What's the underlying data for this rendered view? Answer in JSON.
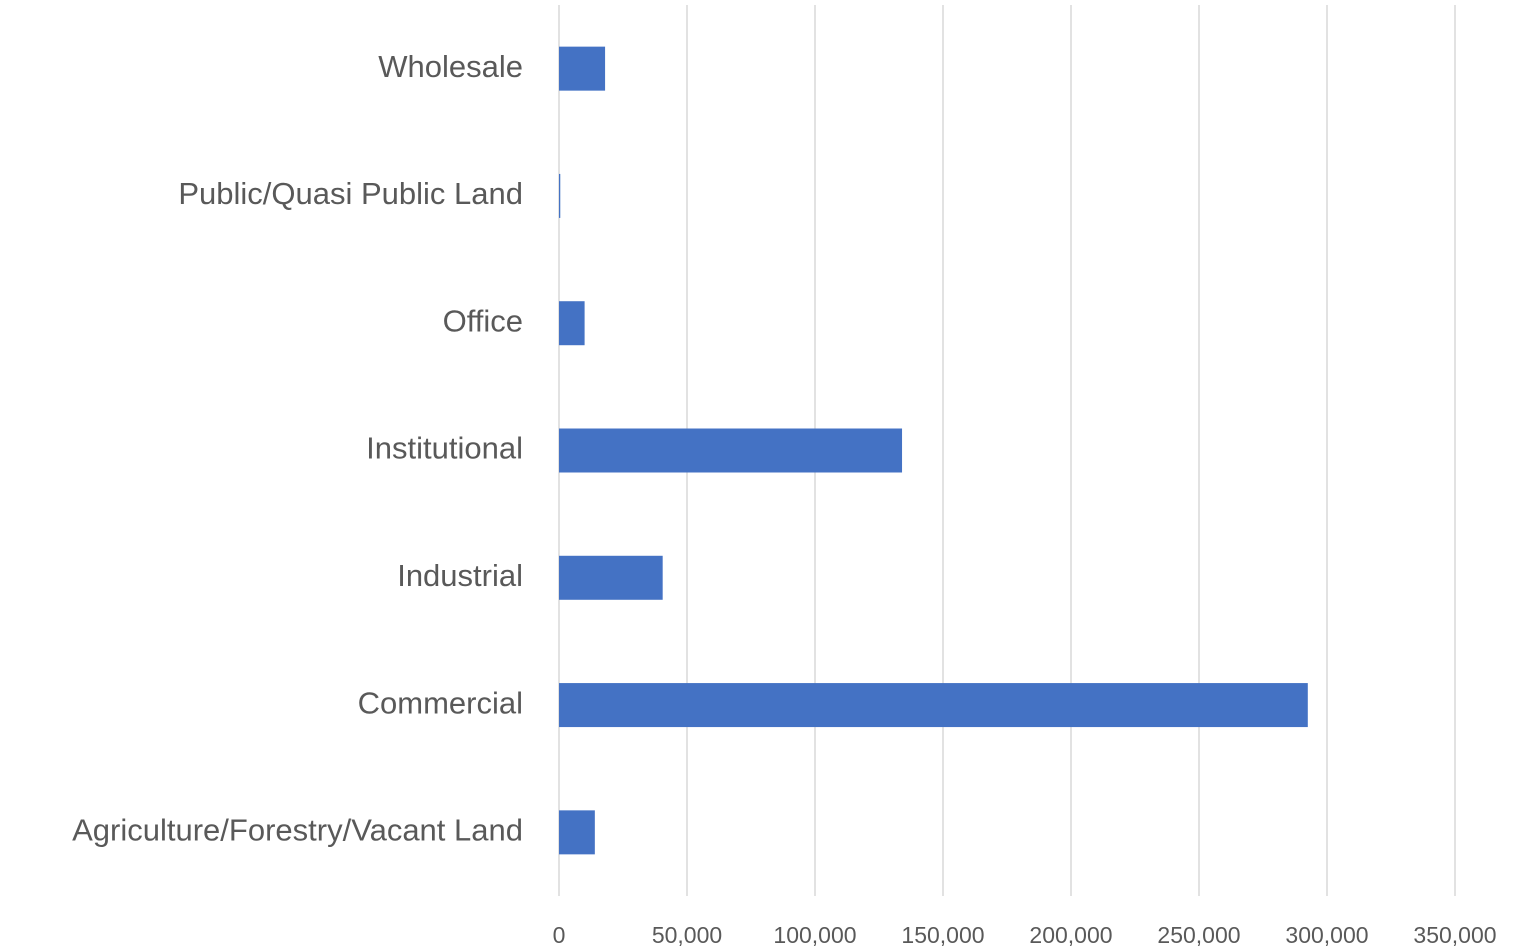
{
  "chart_data": {
    "type": "barh",
    "categories": [
      "Agriculture/Forestry/Vacant Land",
      "Commercial",
      "Industrial",
      "Institutional",
      "Office",
      "Public/Quasi Public Land",
      "Wholesale"
    ],
    "values": [
      14000,
      292500,
      40500,
      134000,
      10000,
      500,
      18000
    ],
    "color": "#4472c4",
    "xlim": [
      0,
      350000
    ],
    "xticks": [
      0,
      {
        "value": 50000,
        "label": "50,000"
      },
      {
        "value": 100000,
        "label": "100,000"
      },
      {
        "value": 150000,
        "label": "150,000"
      },
      {
        "value": 200000,
        "label": "200,000"
      },
      {
        "value": 250000,
        "label": "250,000"
      },
      {
        "value": 300000,
        "label": "300,000"
      },
      {
        "value": 350000,
        "label": "350,000"
      }
    ],
    "grid": true
  }
}
